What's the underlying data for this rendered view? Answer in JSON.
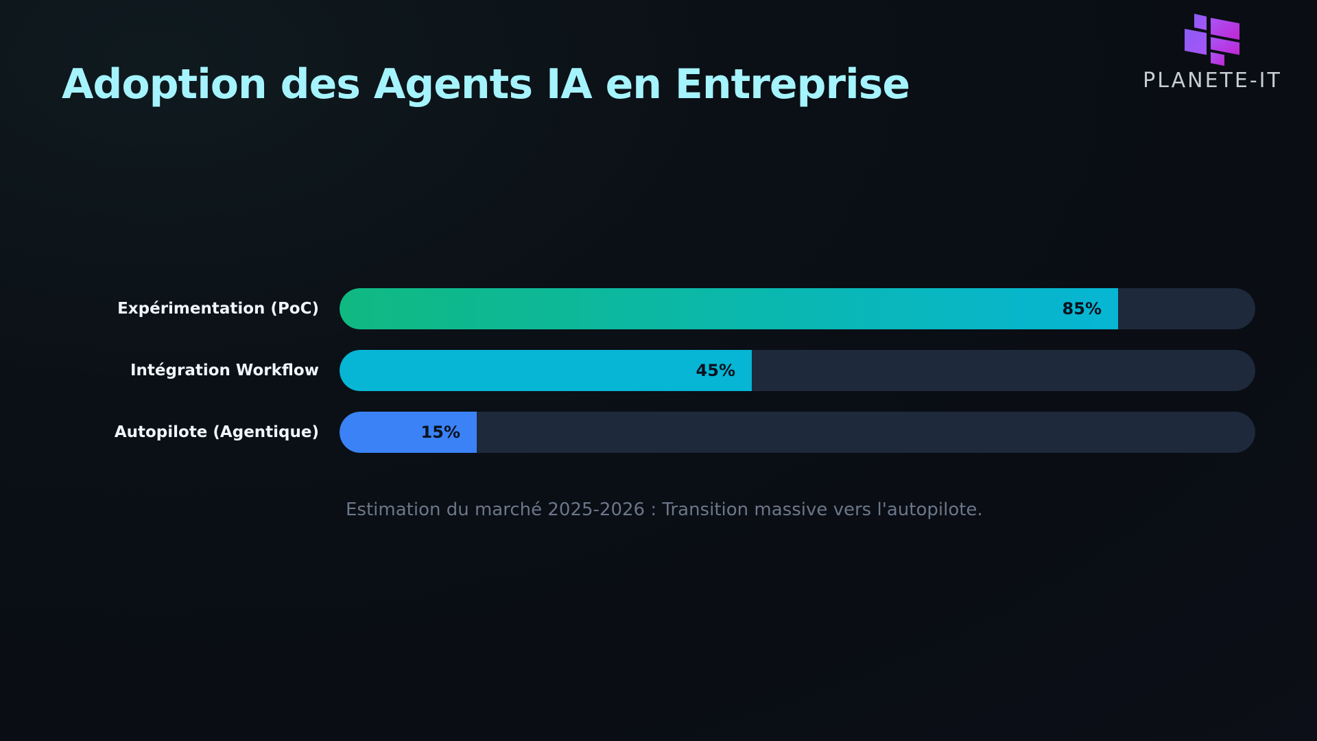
{
  "header": {
    "title": "Adoption des Agents IA en Entreprise"
  },
  "logo": {
    "text": "PLANETE-IT",
    "icon": "planete-it-logo-icon",
    "colors": [
      "#8b5cf6",
      "#a855f7",
      "#c026d3"
    ]
  },
  "chart_data": {
    "type": "bar",
    "orientation": "horizontal",
    "title": "Adoption des Agents IA en Entreprise",
    "categories": [
      "Expérimentation (PoC)",
      "Intégration Workflow",
      "Autopilote (Agentique)"
    ],
    "values": [
      85,
      45,
      15
    ],
    "value_labels": [
      "85%",
      "45%",
      "15%"
    ],
    "xlim": [
      0,
      100
    ],
    "unit": "%",
    "grid": false,
    "colors": [
      [
        "#10b981",
        "#06b6d4"
      ],
      [
        "#06b6d4",
        "#06b6d4"
      ],
      [
        "#3b82f6",
        "#3b82f6"
      ]
    ],
    "track_color": "#1e293b",
    "caption": "Estimation du marché 2025-2026 : Transition massive vers l'autopilote."
  }
}
